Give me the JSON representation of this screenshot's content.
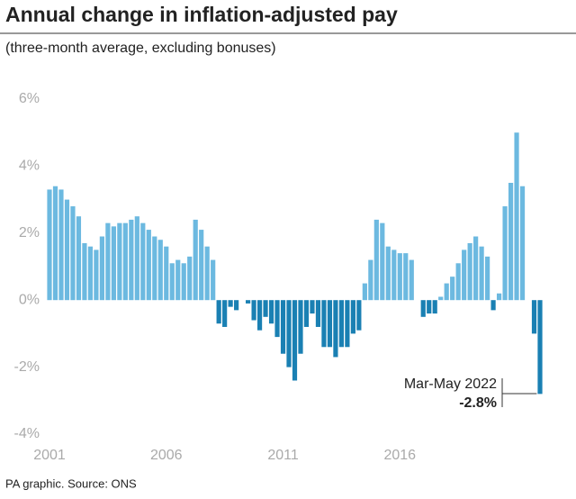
{
  "chart_data": {
    "type": "bar",
    "title": "Annual change in inflation-adjusted pay",
    "subtitle": "(three-month average, excluding bonuses)",
    "source": "PA graphic. Source: ONS",
    "categories": [
      "2001",
      null,
      null,
      null,
      null,
      null,
      null,
      null,
      null,
      null,
      null,
      null,
      null,
      null,
      null,
      null,
      null,
      null,
      null,
      null,
      "2006",
      null,
      null,
      null,
      null,
      null,
      null,
      null,
      null,
      null,
      null,
      null,
      null,
      null,
      null,
      null,
      null,
      null,
      null,
      null,
      "2011",
      null,
      null,
      null,
      null,
      null,
      null,
      null,
      null,
      null,
      null,
      null,
      null,
      null,
      null,
      null,
      null,
      null,
      null,
      null,
      "2016",
      null,
      null,
      null,
      null,
      null,
      null,
      null,
      null,
      null,
      null,
      null,
      null,
      null,
      null,
      null,
      null,
      null,
      null,
      null,
      null,
      null,
      null,
      null,
      null
    ],
    "values": [
      3.3,
      3.4,
      3.3,
      3.0,
      2.8,
      2.5,
      1.7,
      1.6,
      1.5,
      1.9,
      2.3,
      2.2,
      2.3,
      2.3,
      2.4,
      2.5,
      2.3,
      2.1,
      1.9,
      1.8,
      1.6,
      1.1,
      1.2,
      1.1,
      1.3,
      2.4,
      2.1,
      1.6,
      1.2,
      -0.7,
      -0.8,
      -0.2,
      -0.3,
      0,
      -0.1,
      -0.6,
      -0.9,
      -0.5,
      -0.7,
      -1.1,
      -1.6,
      -2.0,
      -2.4,
      -1.6,
      -0.8,
      -0.4,
      -0.8,
      -1.4,
      -1.4,
      -1.7,
      -1.4,
      -1.4,
      -1.0,
      -0.9,
      0.5,
      1.2,
      2.4,
      2.3,
      1.6,
      1.5,
      1.4,
      1.4,
      1.2,
      0,
      -0.5,
      -0.4,
      -0.4,
      0.1,
      0.5,
      0.7,
      1.1,
      1.5,
      1.7,
      1.9,
      1.6,
      1.3,
      -0.3,
      0.2,
      2.8,
      3.5,
      5.0,
      3.4,
      0,
      -1.0,
      -2.8
    ],
    "color": "#6cb9e0",
    "negative_color": "#1a80b3",
    "ylim": [
      -4,
      6
    ],
    "yticks": [
      {
        "value": 6,
        "label": "6%"
      },
      {
        "value": 4,
        "label": "4%"
      },
      {
        "value": 2,
        "label": "2%"
      },
      {
        "value": 0,
        "label": "0%"
      },
      {
        "value": -2,
        "label": "-2%"
      },
      {
        "value": -4,
        "label": "-4%"
      }
    ],
    "grid": false,
    "annotation": {
      "text": "Mar-May 2022",
      "value_label": "-2.8%"
    }
  }
}
